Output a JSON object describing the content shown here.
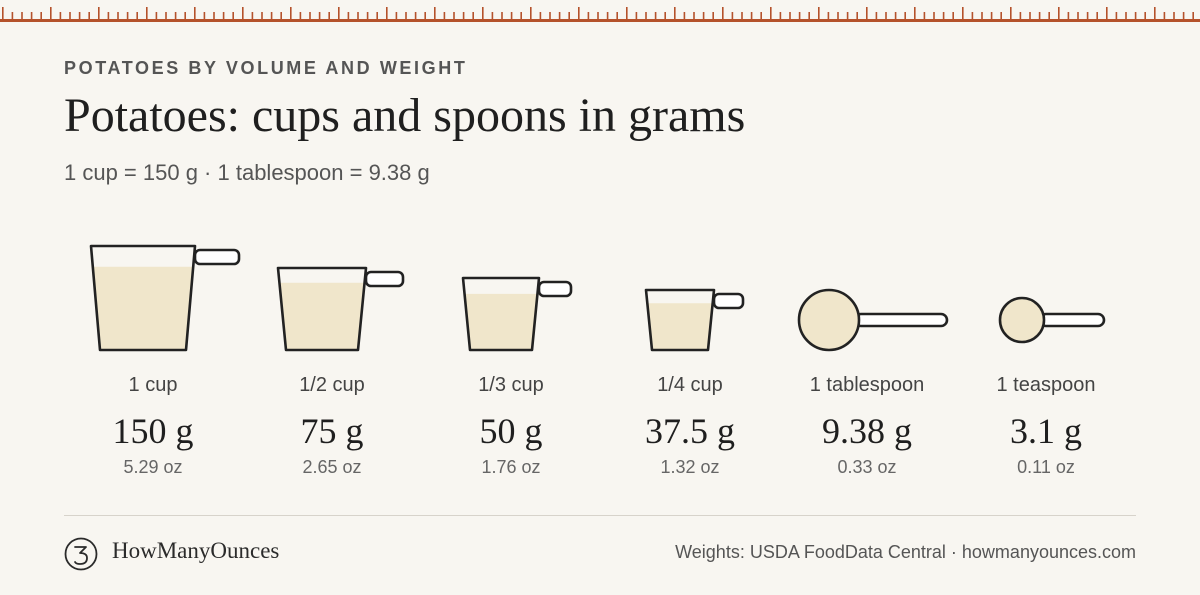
{
  "header": {
    "eyebrow": "POTATOES BY VOLUME AND WEIGHT",
    "title": "Potatoes: cups and spoons in grams",
    "subtitle": "1 cup = 150 g · 1 tablespoon = 9.38 g"
  },
  "measures": [
    {
      "label": "1 cup",
      "grams": "150 g",
      "oz": "5.29 oz",
      "shape": "cup",
      "icon": "measuring-cup-icon"
    },
    {
      "label": "1/2 cup",
      "grams": "75 g",
      "oz": "2.65 oz",
      "shape": "cup",
      "icon": "measuring-cup-icon"
    },
    {
      "label": "1/3 cup",
      "grams": "50 g",
      "oz": "1.76 oz",
      "shape": "cup",
      "icon": "measuring-cup-icon"
    },
    {
      "label": "1/4 cup",
      "grams": "37.5 g",
      "oz": "1.32 oz",
      "shape": "cup",
      "icon": "measuring-cup-icon"
    },
    {
      "label": "1 tablespoon",
      "grams": "9.38 g",
      "oz": "0.33 oz",
      "shape": "spoon",
      "icon": "measuring-spoon-icon"
    },
    {
      "label": "1 teaspoon",
      "grams": "3.1 g",
      "oz": "0.11 oz",
      "shape": "spoon",
      "icon": "measuring-spoon-icon"
    }
  ],
  "footer": {
    "logo_icon": "logo-mark-icon",
    "brand": "HowManyOunces",
    "source": "Weights: USDA FoodData Central · howmanyounces.com"
  },
  "colors": {
    "background": "#f8f6f1",
    "ruler": "#b5522b",
    "fill": "#f0e6cb",
    "outline": "#222222"
  }
}
